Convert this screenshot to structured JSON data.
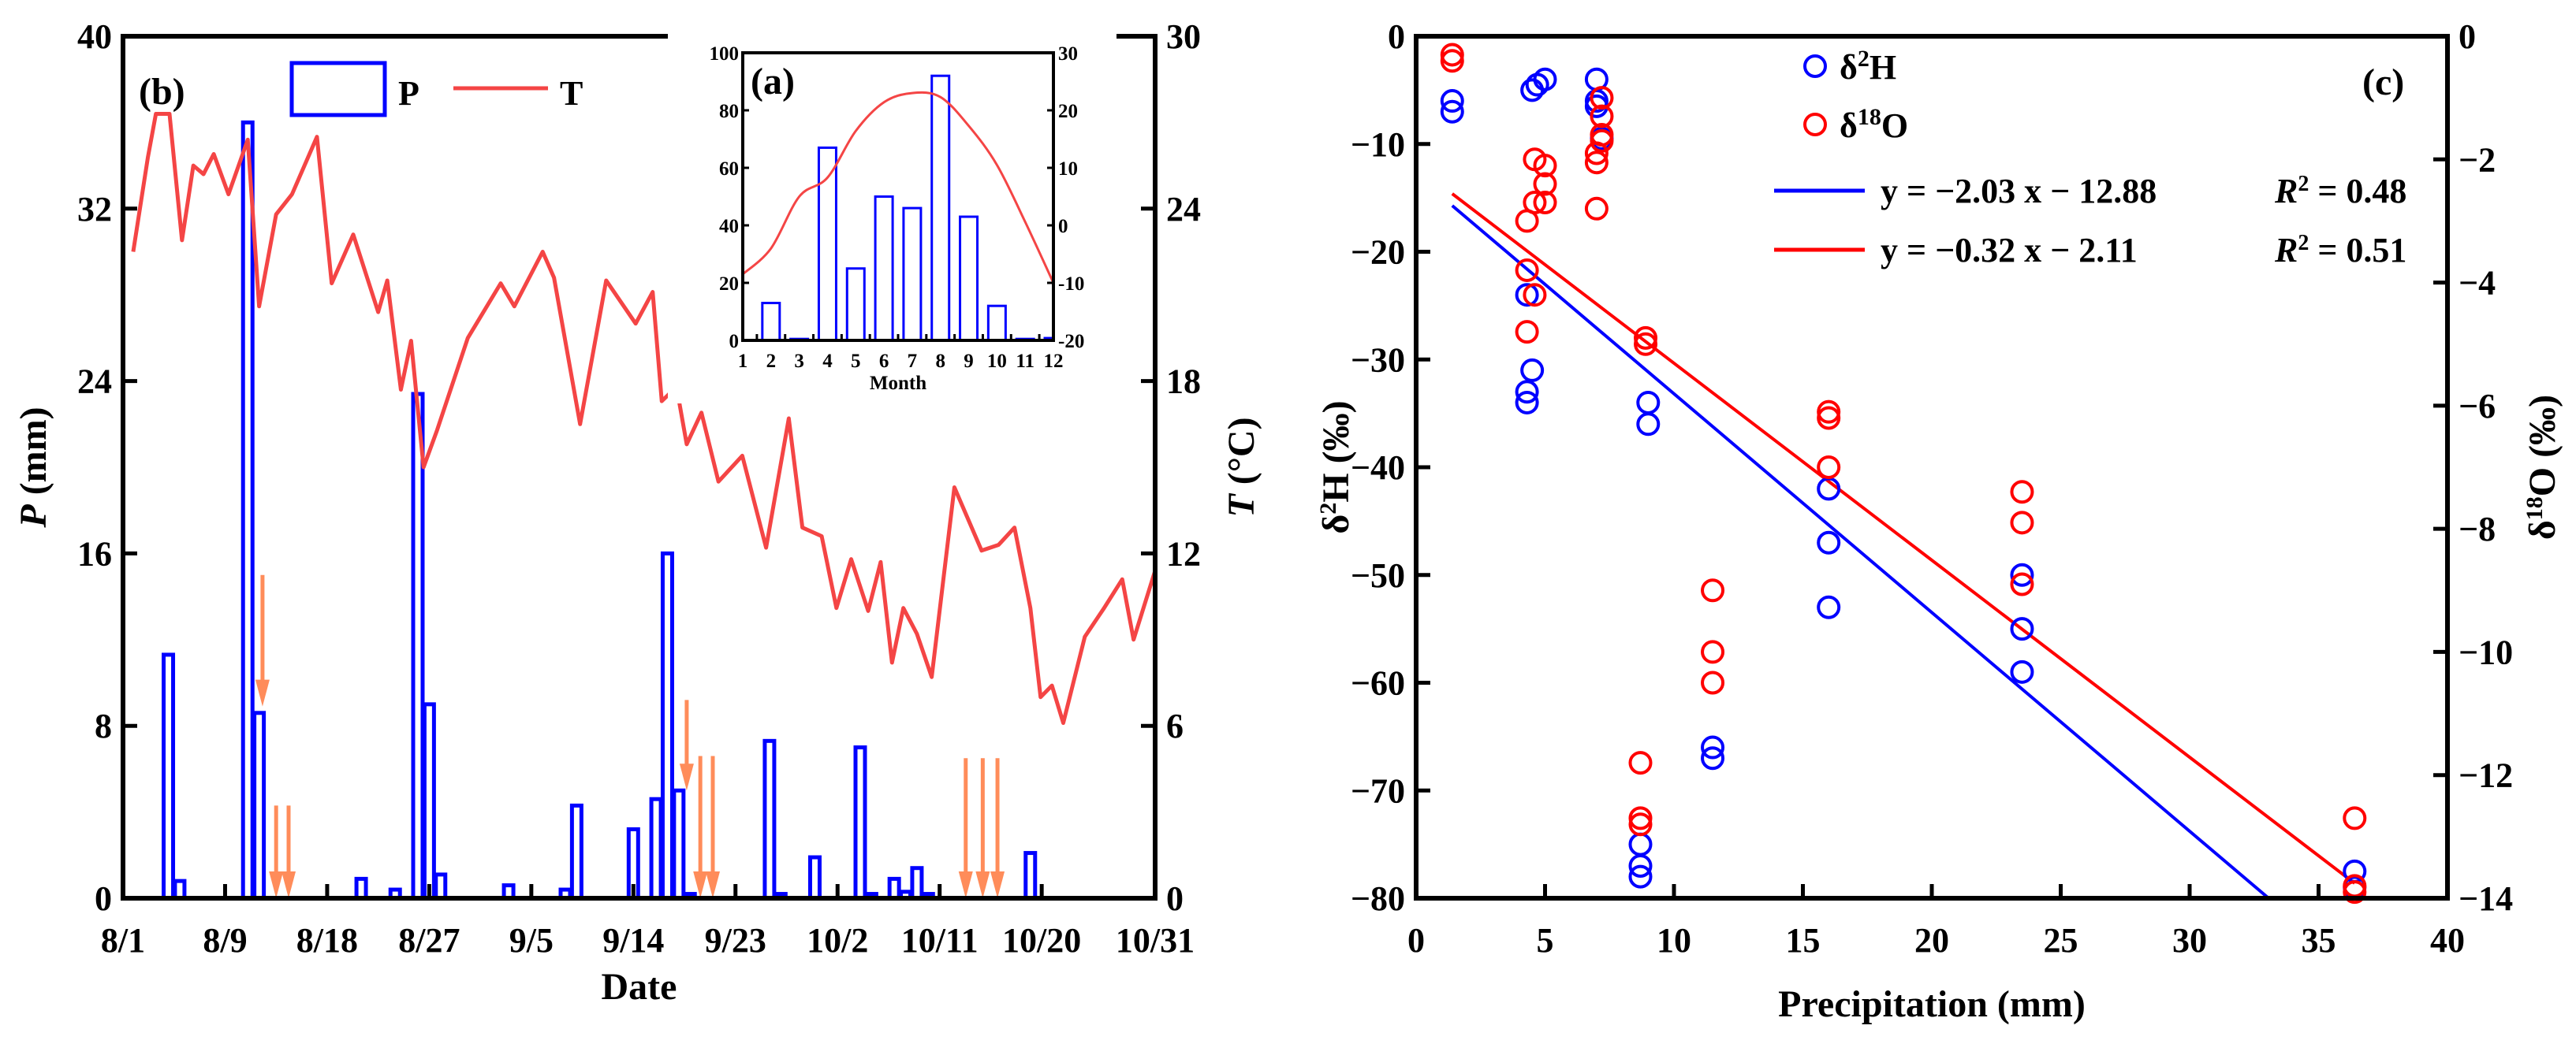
{
  "chart_data": [
    {
      "panel": "(b)",
      "type": "bar+line",
      "xlabel": "Date",
      "ylabel": {
        "italic": "P",
        "rest": " (mm)"
      },
      "y2label": {
        "italic": "T",
        "rest": " (°C)"
      },
      "xlim": [
        0,
        91
      ],
      "ylim": [
        0,
        40
      ],
      "y2lim": [
        0,
        30
      ],
      "x_ticks": [
        {
          "day": 0,
          "label": "8/1"
        },
        {
          "day": 9,
          "label": "8/9"
        },
        {
          "day": 18,
          "label": "8/18"
        },
        {
          "day": 27,
          "label": "8/27"
        },
        {
          "day": 36,
          "label": "9/5"
        },
        {
          "day": 45,
          "label": "9/14"
        },
        {
          "day": 54,
          "label": "9/23"
        },
        {
          "day": 63,
          "label": "10/2"
        },
        {
          "day": 72,
          "label": "10/11"
        },
        {
          "day": 81,
          "label": "10/20"
        },
        {
          "day": 91,
          "label": "10/31"
        }
      ],
      "y_ticks": [
        "0",
        "8",
        "16",
        "24",
        "32",
        "40"
      ],
      "y2_ticks": [
        "0",
        "6",
        "12",
        "18",
        "24",
        "30"
      ],
      "legend": {
        "p": "P",
        "t": "T",
        "placement": "top-left"
      },
      "precipitation": {
        "day": [
          4,
          5,
          11,
          12,
          21,
          24,
          26,
          27,
          28,
          34,
          39,
          40,
          45,
          47,
          48,
          49,
          50,
          57,
          58,
          61,
          65,
          66,
          68,
          69,
          70,
          71,
          80
        ],
        "values": [
          11.3,
          0.8,
          36,
          8.6,
          0.9,
          0.4,
          23.4,
          9,
          1.1,
          0.6,
          0.4,
          4.3,
          3.2,
          4.6,
          16,
          5,
          0.2,
          7.3,
          0.2,
          1.9,
          7,
          0.2,
          0.9,
          0.3,
          1.4,
          0.2,
          2.1
        ]
      },
      "temperature": {
        "day": [
          0.9,
          2.2,
          2.9,
          4.1,
          5.2,
          6.2,
          7.1,
          8,
          9.3,
          11,
          12,
          13.5,
          14.9,
          17.1,
          18.4,
          20.3,
          22.5,
          23.3,
          24.5,
          25.4,
          26.5,
          27.7,
          30.4,
          33.3,
          34.5,
          37,
          38,
          40.3,
          42.6,
          45.2,
          46.7,
          47.5,
          48.8,
          49.7,
          51,
          52.5,
          54.6,
          56.7,
          58.7,
          59.9,
          61.6,
          62.9,
          64.2,
          65.7,
          66.8,
          67.8,
          68.8,
          70,
          71.3,
          73.3,
          75.7,
          77.2,
          78.6,
          80,
          80.9,
          81.9,
          82.9,
          84.8,
          86.5,
          88.1,
          89.1,
          91
        ],
        "values": [
          22.5,
          25.8,
          27.3,
          27.3,
          22.9,
          25.5,
          25.2,
          25.9,
          24.5,
          26.4,
          20.6,
          23.8,
          24.5,
          26.5,
          21.4,
          23.1,
          20.4,
          21.5,
          17.7,
          19.4,
          15,
          16.3,
          19.5,
          21.4,
          20.6,
          22.5,
          21.6,
          16.5,
          21.5,
          20,
          21.1,
          17.3,
          17.8,
          15.8,
          16.9,
          14.5,
          15.4,
          12.2,
          16.7,
          12.9,
          12.6,
          10.1,
          11.8,
          10,
          11.7,
          8.2,
          10.1,
          9.2,
          7.7,
          14.3,
          12.1,
          12.3,
          12.9,
          10.1,
          7.0,
          7.4,
          6.1,
          9.1,
          10.1,
          11.1,
          9,
          11.4
        ]
      },
      "sampling_arrows": [
        {
          "day": 12.3,
          "from": 15,
          "to": 8.9
        },
        {
          "day": 13.5,
          "from": 4.3,
          "to": 0
        },
        {
          "day": 14.6,
          "from": 4.3,
          "to": 0
        },
        {
          "day": 49.7,
          "from": 9.2,
          "to": 5
        },
        {
          "day": 50.9,
          "from": 6.6,
          "to": 0
        },
        {
          "day": 52.0,
          "from": 6.6,
          "to": 0
        },
        {
          "day": 74.3,
          "from": 6.5,
          "to": 0
        },
        {
          "day": 75.8,
          "from": 6.5,
          "to": 0
        },
        {
          "day": 77.1,
          "from": 6.5,
          "to": 0
        }
      ],
      "colors": {
        "p": "#0000ff",
        "t": "#f44545",
        "arrow": "#ff8c5a"
      }
    },
    {
      "panel": "(a)",
      "type": "bar+line",
      "xlabel": "Month",
      "categories": [
        "1",
        "2",
        "3",
        "4",
        "5",
        "6",
        "7",
        "8",
        "9",
        "10",
        "11",
        "12"
      ],
      "precipitation": [
        0,
        13,
        0.5,
        67,
        25,
        50,
        46,
        92,
        43,
        12,
        0.5,
        0.8
      ],
      "temperature": [
        -8.5,
        -4,
        5,
        8.3,
        16.4,
        21.4,
        23,
        22.3,
        17.3,
        10.5,
        0.6,
        -10
      ],
      "ylim": [
        0,
        100
      ],
      "y2lim": [
        -20,
        30
      ],
      "y_ticks": [
        "0",
        "20",
        "40",
        "60",
        "80",
        "100"
      ],
      "y2_ticks": [
        "-20",
        "-10",
        "0",
        "10",
        "20",
        "30"
      ]
    },
    {
      "panel": "(c)",
      "type": "scatter",
      "xlabel": "Precipitation (mm)",
      "ylabel": {
        "delta": "δ",
        "sup": "2",
        "rest": "H (‰)"
      },
      "y2label": {
        "delta": "δ",
        "sup": "18",
        "rest": "O (‰)"
      },
      "xlim": [
        0,
        40
      ],
      "ylim": [
        -80,
        0
      ],
      "y2lim": [
        -14,
        0
      ],
      "x_ticks": [
        "0",
        "5",
        "10",
        "15",
        "20",
        "25",
        "30",
        "35",
        "40"
      ],
      "y_ticks": [
        "−80",
        "−70",
        "−60",
        "−50",
        "−40",
        "−30",
        "−20",
        "−10",
        "0"
      ],
      "y2_ticks": [
        "−14",
        "−12",
        "−10",
        "−8",
        "−6",
        "−4",
        "−2",
        "0"
      ],
      "series": [
        {
          "name": {
            "delta": "δ",
            "sup": "2",
            "rest": "H"
          },
          "color": "#0000ff",
          "axis": "left",
          "points": [
            [
              1.4,
              -6
            ],
            [
              1.4,
              -7
            ],
            [
              4.3,
              -24
            ],
            [
              4.3,
              -33
            ],
            [
              4.3,
              -34
            ],
            [
              4.5,
              -5
            ],
            [
              4.5,
              -31
            ],
            [
              4.7,
              -4.5
            ],
            [
              5.0,
              -4
            ],
            [
              7.0,
              -4
            ],
            [
              7.0,
              -6
            ],
            [
              7.0,
              -6.5
            ],
            [
              7.2,
              -9.5
            ],
            [
              8.7,
              -75
            ],
            [
              8.7,
              -77
            ],
            [
              8.7,
              -78
            ],
            [
              9.0,
              -34
            ],
            [
              9.0,
              -36
            ],
            [
              11.5,
              -66
            ],
            [
              11.5,
              -67
            ],
            [
              16,
              -42
            ],
            [
              16,
              -47
            ],
            [
              16,
              -53
            ],
            [
              23.5,
              -50
            ],
            [
              23.5,
              -55
            ],
            [
              23.5,
              -59
            ],
            [
              36.4,
              -77.5
            ],
            [
              36.4,
              -79
            ]
          ]
        },
        {
          "name": {
            "delta": "δ",
            "sup": "18",
            "rest": "O"
          },
          "color": "#ff0000",
          "axis": "right",
          "points": [
            [
              1.4,
              -0.3
            ],
            [
              1.4,
              -0.4
            ],
            [
              4.3,
              -3.0
            ],
            [
              4.3,
              -3.8
            ],
            [
              4.3,
              -4.8
            ],
            [
              4.6,
              -2.0
            ],
            [
              4.6,
              -2.7
            ],
            [
              4.6,
              -4.2
            ],
            [
              5.0,
              -2.1
            ],
            [
              5.0,
              -2.4
            ],
            [
              5.0,
              -2.7
            ],
            [
              7.0,
              -1.9
            ],
            [
              7.0,
              -2.05
            ],
            [
              7.0,
              -2.8
            ],
            [
              7.2,
              -1.0
            ],
            [
              7.2,
              -1.3
            ],
            [
              7.2,
              -1.6
            ],
            [
              7.2,
              -1.7
            ],
            [
              8.9,
              -4.9
            ],
            [
              8.9,
              -5.0
            ],
            [
              8.7,
              -11.8
            ],
            [
              8.7,
              -12.7
            ],
            [
              8.7,
              -12.8
            ],
            [
              11.5,
              -9.0
            ],
            [
              11.5,
              -10.0
            ],
            [
              11.5,
              -10.5
            ],
            [
              16,
              -6.1
            ],
            [
              16,
              -6.2
            ],
            [
              16,
              -7.0
            ],
            [
              23.5,
              -7.4
            ],
            [
              23.5,
              -7.9
            ],
            [
              23.5,
              -8.9
            ],
            [
              36.4,
              -12.7
            ],
            [
              36.4,
              -13.8
            ],
            [
              36.4,
              -13.9
            ]
          ]
        }
      ],
      "fits": [
        {
          "equation": "y = −2.03 x − 12.88",
          "r2_label": "R",
          "r2_sup": "2",
          "r2_value": " = 0.48",
          "slope": -2.03,
          "intercept": -12.88,
          "axis": "left",
          "x_range": [
            1.4,
            33.1
          ],
          "color": "#0000ff"
        },
        {
          "equation": "y = −0.32 x − 2.11",
          "r2_label": "R",
          "r2_sup": "2",
          "r2_value": " = 0.51",
          "slope": -0.32,
          "intercept": -2.11,
          "axis": "right",
          "x_range": [
            1.4,
            36.4
          ],
          "color": "#ff0000"
        }
      ],
      "legend_placement": "top-right"
    }
  ]
}
